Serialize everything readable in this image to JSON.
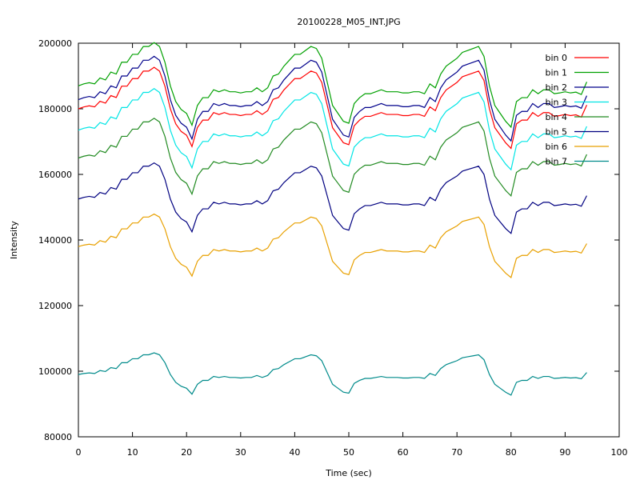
{
  "chart_data": {
    "type": "line",
    "title": "20100228_M05_INT.JPG",
    "xlabel": "Time (sec)",
    "ylabel": "Intensity",
    "xlim": [
      0,
      100
    ],
    "ylim": [
      80000,
      200000
    ],
    "xticks": [
      0,
      10,
      20,
      30,
      40,
      50,
      60,
      70,
      80,
      90,
      100
    ],
    "yticks": [
      80000,
      100000,
      120000,
      140000,
      160000,
      180000,
      200000
    ],
    "grid": false,
    "legend_position": "top-right",
    "base_shape": [
      0,
      500,
      800,
      500,
      2000,
      1500,
      3500,
      3000,
      6000,
      6000,
      8000,
      8000,
      10000,
      10000,
      11000,
      10000,
      6000,
      0,
      -4000,
      -6000,
      -7000,
      -10000,
      -5000,
      -3000,
      -3000,
      -1000,
      -1500,
      -1000,
      -1500,
      -1500,
      -1800,
      -1500,
      -1500,
      -500,
      -1500,
      -500,
      2500,
      3000,
      5000,
      6500,
      8000,
      8000,
      9000,
      10000,
      9500,
      7000,
      1000,
      -5000,
      -7000,
      -9000,
      -9500,
      -4500,
      -3000,
      -2000,
      -2000,
      -1500,
      -1000,
      -1500,
      -1500,
      -1500,
      -1800,
      -1800,
      -1500,
      -1500,
      -2000,
      500,
      -500,
      3000,
      5000,
      6000,
      7000,
      8500,
      9000,
      9500,
      10000,
      7500,
      0,
      -5000,
      -7000,
      -9000,
      -10500,
      -4000,
      -3000,
      -3000,
      -1000,
      -2000,
      -1000,
      -1000,
      -2000,
      -1800,
      -1500,
      -1800,
      -1600,
      -2200,
      1000
    ],
    "series": [
      {
        "name": "bin 0",
        "color": "#ff0000",
        "offset": 180000,
        "scale": 1.15,
        "values": []
      },
      {
        "name": "bin 1",
        "color": "#00a000",
        "offset": 187000,
        "scale": 1.2,
        "values": []
      },
      {
        "name": "bin 2",
        "color": "#00008b",
        "offset": 182800,
        "scale": 1.2,
        "values": []
      },
      {
        "name": "bin 3",
        "color": "#00e5e5",
        "offset": 173500,
        "scale": 1.15,
        "values": []
      },
      {
        "name": "bin 4",
        "color": "#228b22",
        "offset": 165000,
        "scale": 1.1,
        "values": []
      },
      {
        "name": "bin 5",
        "color": "#000080",
        "offset": 152500,
        "scale": 1.0,
        "values": []
      },
      {
        "name": "bin 6",
        "color": "#e8a000",
        "offset": 138000,
        "scale": 0.9,
        "values": []
      },
      {
        "name": "bin 7",
        "color": "#008b8b",
        "offset": 99000,
        "scale": 0.6,
        "values": []
      }
    ]
  }
}
